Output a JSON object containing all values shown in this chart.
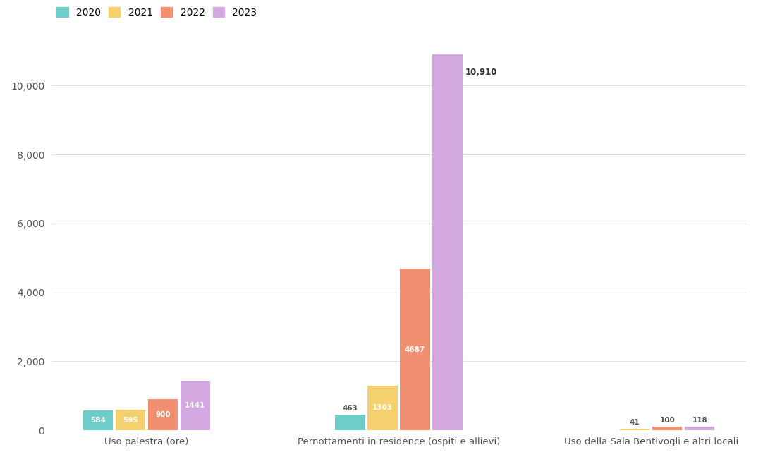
{
  "categories": [
    "Uso palestra (ore)",
    "Pernottamenti in residence (ospiti e allievi)",
    "Uso della Sala Bentivogli e altri locali"
  ],
  "years": [
    "2020",
    "2021",
    "2022",
    "2023"
  ],
  "colors": [
    "#6dcdc8",
    "#f5d06e",
    "#f09070",
    "#d4a8e0"
  ],
  "values": {
    "Uso palestra (ore)": [
      584,
      595,
      900,
      1441
    ],
    "Pernottamenti in residence (ospiti e allievi)": [
      463,
      1303,
      4687,
      10910
    ],
    "Uso della Sala Bentivogli e altri locali": [
      0,
      41,
      100,
      118
    ]
  },
  "labels": {
    "Uso palestra (ore)": [
      "584",
      "595",
      "900",
      "1441"
    ],
    "Pernottamenti in residence (ospiti e allievi)": [
      "463",
      "1303",
      "4687",
      "10,910"
    ],
    "Uso della Sala Bentivogli e altri locali": [
      "",
      "41",
      "100",
      "118"
    ]
  },
  "ylim": [
    0,
    11500
  ],
  "yticks": [
    0,
    2000,
    4000,
    6000,
    8000,
    10000
  ],
  "background_color": "#ffffff",
  "grid_color": "#e0e0e0",
  "bar_width": 0.18,
  "group_positions": [
    0,
    1.4,
    2.8
  ]
}
